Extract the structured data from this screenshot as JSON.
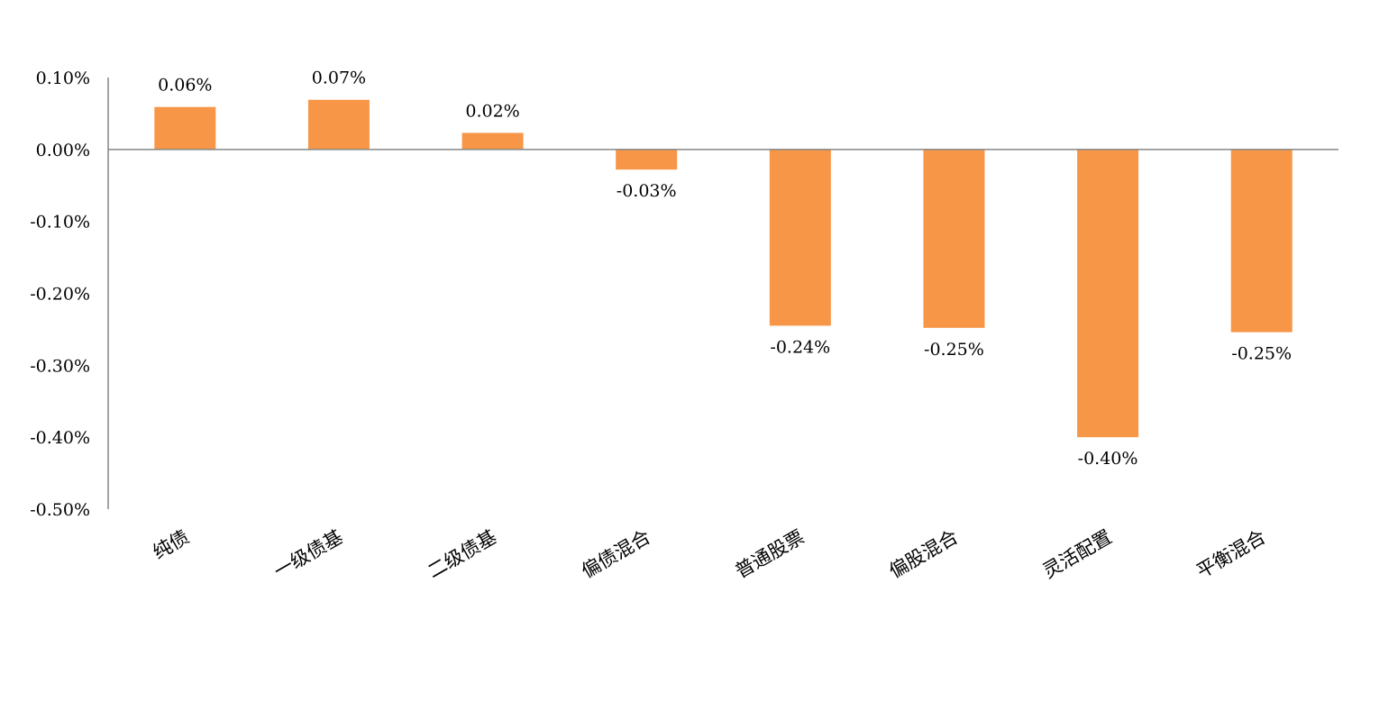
{
  "chart_data": {
    "type": "bar",
    "title": "",
    "xlabel": "",
    "ylabel": "",
    "categories": [
      "纯债",
      "一级债基",
      "二级债基",
      "偏债混合",
      "普通股票",
      "偏股混合",
      "灵活配置",
      "平衡混合"
    ],
    "values": [
      0.059,
      0.069,
      0.023,
      -0.028,
      -0.245,
      -0.248,
      -0.4,
      -0.254
    ],
    "data_labels": [
      "0.06%",
      "0.07%",
      "0.02%",
      "-0.03%",
      "-0.24%",
      "-0.25%",
      "-0.40%",
      "-0.25%"
    ],
    "ylim": [
      -0.5,
      0.1
    ],
    "y_ticks": [
      0.1,
      0.0,
      -0.1,
      -0.2,
      -0.3,
      -0.4,
      -0.5
    ],
    "y_tick_labels": [
      "0.10%",
      "0.00%",
      "-0.10%",
      "-0.20%",
      "-0.30%",
      "-0.40%",
      "-0.50%"
    ],
    "unit": "%",
    "grid": false,
    "legend": "none",
    "colors": {
      "bar": "#F79646",
      "axis": "#868686"
    }
  }
}
